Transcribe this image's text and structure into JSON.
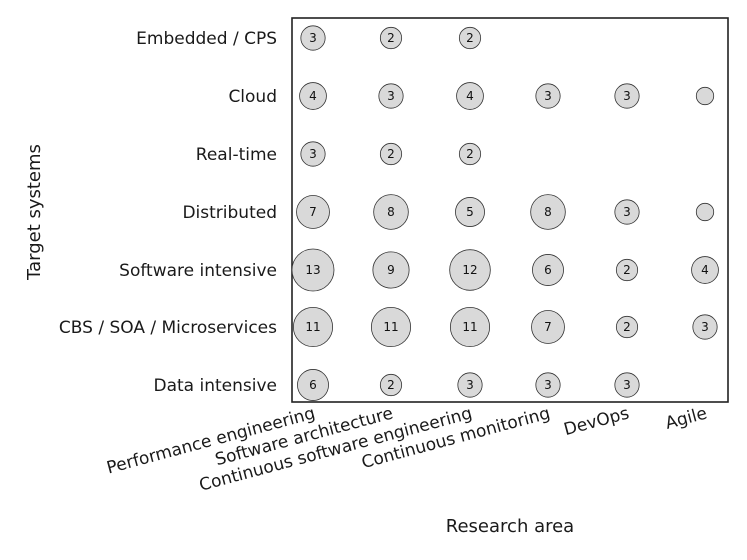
{
  "chart_data": {
    "type": "scatter",
    "subtype": "bubble",
    "xlabel": "Research area",
    "ylabel": "Target systems",
    "x_categories": [
      "Performance engineering",
      "Software architecture",
      "Continuous software engineering",
      "Continuous monitoring",
      "DevOps",
      "Agile"
    ],
    "y_categories": [
      "Embedded / CPS",
      "Cloud",
      "Real-time",
      "Distributed",
      "Software intensive",
      "CBS / SOA / Microservices",
      "Data intensive"
    ],
    "points": [
      {
        "x": "Performance engineering",
        "y": "Embedded / CPS",
        "value": 3,
        "label": "3"
      },
      {
        "x": "Software architecture",
        "y": "Embedded / CPS",
        "value": 2,
        "label": "2"
      },
      {
        "x": "Continuous software engineering",
        "y": "Embedded / CPS",
        "value": 2,
        "label": "2"
      },
      {
        "x": "Performance engineering",
        "y": "Cloud",
        "value": 4,
        "label": "4"
      },
      {
        "x": "Software architecture",
        "y": "Cloud",
        "value": 3,
        "label": "3"
      },
      {
        "x": "Continuous software engineering",
        "y": "Cloud",
        "value": 4,
        "label": "4"
      },
      {
        "x": "Continuous monitoring",
        "y": "Cloud",
        "value": 3,
        "label": "3"
      },
      {
        "x": "DevOps",
        "y": "Cloud",
        "value": 3,
        "label": "3"
      },
      {
        "x": "Agile",
        "y": "Cloud",
        "value": 1,
        "label": ""
      },
      {
        "x": "Performance engineering",
        "y": "Real-time",
        "value": 3,
        "label": "3"
      },
      {
        "x": "Software architecture",
        "y": "Real-time",
        "value": 2,
        "label": "2"
      },
      {
        "x": "Continuous software engineering",
        "y": "Real-time",
        "value": 2,
        "label": "2"
      },
      {
        "x": "Performance engineering",
        "y": "Distributed",
        "value": 7,
        "label": "7"
      },
      {
        "x": "Software architecture",
        "y": "Distributed",
        "value": 8,
        "label": "8"
      },
      {
        "x": "Continuous software engineering",
        "y": "Distributed",
        "value": 5,
        "label": "5"
      },
      {
        "x": "Continuous monitoring",
        "y": "Distributed",
        "value": 8,
        "label": "8"
      },
      {
        "x": "DevOps",
        "y": "Distributed",
        "value": 3,
        "label": "3"
      },
      {
        "x": "Agile",
        "y": "Distributed",
        "value": 1,
        "label": ""
      },
      {
        "x": "Performance engineering",
        "y": "Software intensive",
        "value": 13,
        "label": "13"
      },
      {
        "x": "Software architecture",
        "y": "Software intensive",
        "value": 9,
        "label": "9"
      },
      {
        "x": "Continuous software engineering",
        "y": "Software intensive",
        "value": 12,
        "label": "12"
      },
      {
        "x": "Continuous monitoring",
        "y": "Software intensive",
        "value": 6,
        "label": "6"
      },
      {
        "x": "DevOps",
        "y": "Software intensive",
        "value": 2,
        "label": "2"
      },
      {
        "x": "Agile",
        "y": "Software intensive",
        "value": 4,
        "label": "4"
      },
      {
        "x": "Performance engineering",
        "y": "CBS / SOA / Microservices",
        "value": 11,
        "label": "11"
      },
      {
        "x": "Software architecture",
        "y": "CBS / SOA / Microservices",
        "value": 11,
        "label": "11"
      },
      {
        "x": "Continuous software engineering",
        "y": "CBS / SOA / Microservices",
        "value": 11,
        "label": "11"
      },
      {
        "x": "Continuous monitoring",
        "y": "CBS / SOA / Microservices",
        "value": 7,
        "label": "7"
      },
      {
        "x": "DevOps",
        "y": "CBS / SOA / Microservices",
        "value": 2,
        "label": "2"
      },
      {
        "x": "Agile",
        "y": "CBS / SOA / Microservices",
        "value": 3,
        "label": "3"
      },
      {
        "x": "Performance engineering",
        "y": "Data intensive",
        "value": 6,
        "label": "6"
      },
      {
        "x": "Software architecture",
        "y": "Data intensive",
        "value": 2,
        "label": "2"
      },
      {
        "x": "Continuous software engineering",
        "y": "Data intensive",
        "value": 3,
        "label": "3"
      },
      {
        "x": "Continuous monitoring",
        "y": "Data intensive",
        "value": 3,
        "label": "3"
      },
      {
        "x": "DevOps",
        "y": "Data intensive",
        "value": 3,
        "label": "3"
      }
    ],
    "grid": false,
    "legend": "none"
  }
}
